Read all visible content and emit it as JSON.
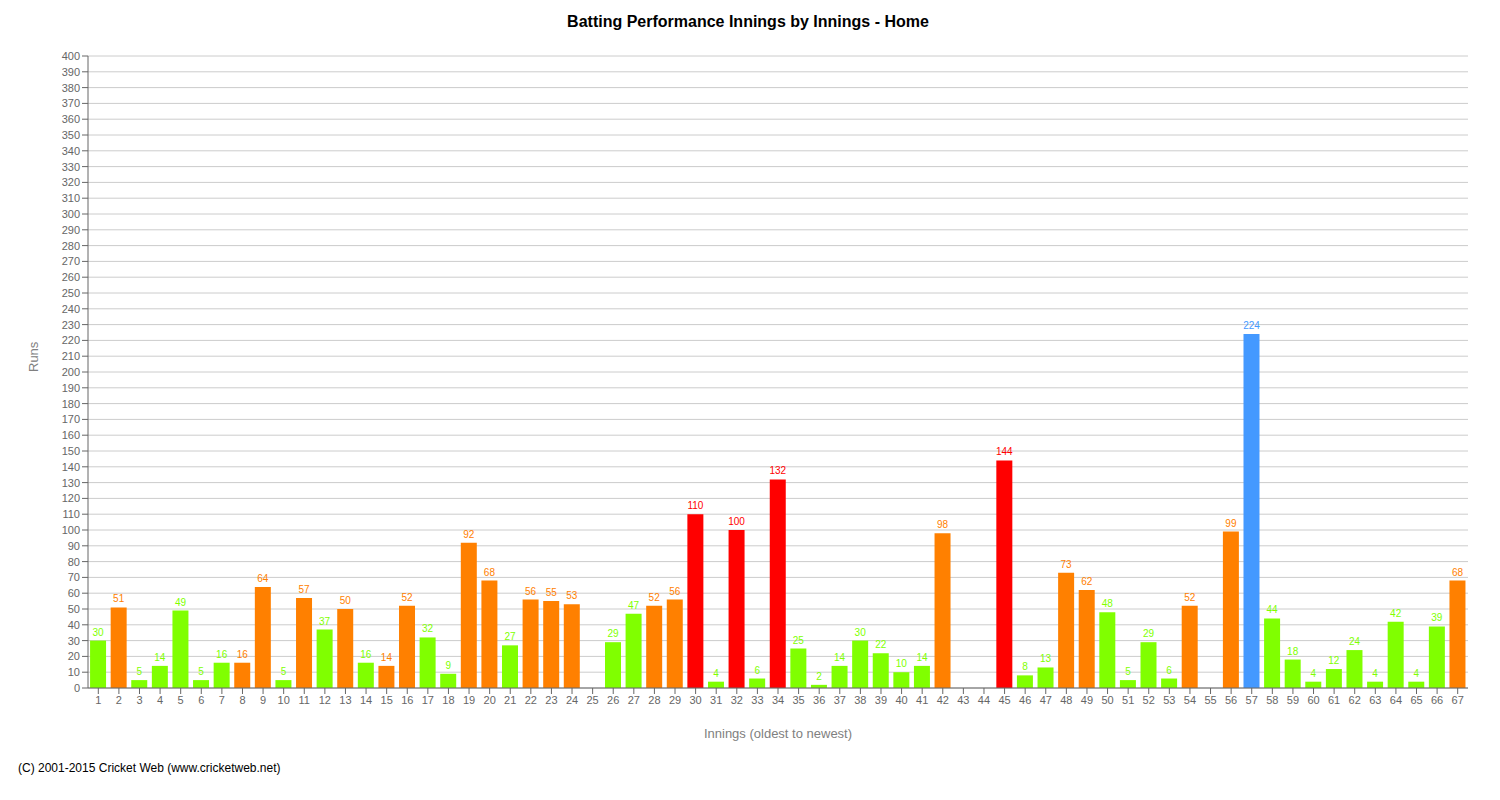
{
  "chart_data": {
    "type": "bar",
    "title": "Batting Performance Innings by Innings - Home",
    "xlabel": "Innings (oldest to newest)",
    "ylabel": "Runs",
    "footer": "(C) 2001-2015 Cricket Web (www.cricketweb.net)",
    "categories": [
      "1",
      "2",
      "3",
      "4",
      "5",
      "6",
      "7",
      "8",
      "9",
      "10",
      "11",
      "12",
      "13",
      "14",
      "15",
      "16",
      "17",
      "18",
      "19",
      "20",
      "21",
      "22",
      "23",
      "24",
      "25",
      "26",
      "27",
      "28",
      "29",
      "30",
      "31",
      "32",
      "33",
      "34",
      "35",
      "36",
      "37",
      "38",
      "39",
      "40",
      "41",
      "42",
      "43",
      "44",
      "45",
      "46",
      "47",
      "48",
      "49",
      "50",
      "51",
      "52",
      "53",
      "54",
      "55",
      "56",
      "57",
      "58",
      "59",
      "60",
      "61",
      "62",
      "63",
      "64",
      "65",
      "66",
      "67"
    ],
    "values": [
      30,
      51,
      5,
      14,
      49,
      5,
      16,
      16,
      64,
      5,
      57,
      37,
      50,
      16,
      14,
      52,
      32,
      9,
      92,
      68,
      27,
      56,
      55,
      53,
      0,
      29,
      47,
      52,
      56,
      110,
      4,
      100,
      6,
      132,
      25,
      2,
      14,
      30,
      22,
      10,
      14,
      98,
      0,
      0,
      144,
      8,
      13,
      73,
      62,
      48,
      5,
      29,
      6,
      52,
      0,
      99,
      224,
      44,
      18,
      4,
      12,
      24,
      4,
      42,
      4,
      39,
      68
    ],
    "colors": [
      "#80ff00",
      "#ff8000",
      "#80ff00",
      "#80ff00",
      "#80ff00",
      "#80ff00",
      "#80ff00",
      "#ff8000",
      "#ff8000",
      "#80ff00",
      "#ff8000",
      "#80ff00",
      "#ff8000",
      "#80ff00",
      "#ff8000",
      "#ff8000",
      "#80ff00",
      "#80ff00",
      "#ff8000",
      "#ff8000",
      "#80ff00",
      "#ff8000",
      "#ff8000",
      "#ff8000",
      "#80ff00",
      "#80ff00",
      "#80ff00",
      "#ff8000",
      "#ff8000",
      "#ff0000",
      "#80ff00",
      "#ff0000",
      "#80ff00",
      "#ff0000",
      "#80ff00",
      "#80ff00",
      "#80ff00",
      "#80ff00",
      "#80ff00",
      "#80ff00",
      "#80ff00",
      "#ff8000",
      "#80ff00",
      "#80ff00",
      "#ff0000",
      "#80ff00",
      "#80ff00",
      "#ff8000",
      "#ff8000",
      "#80ff00",
      "#80ff00",
      "#80ff00",
      "#80ff00",
      "#ff8000",
      "#80ff00",
      "#ff8000",
      "#4499ff",
      "#80ff00",
      "#80ff00",
      "#80ff00",
      "#80ff00",
      "#80ff00",
      "#80ff00",
      "#80ff00",
      "#80ff00",
      "#80ff00",
      "#ff8000"
    ],
    "ylim": [
      0,
      400
    ],
    "yticks": [
      0,
      10,
      20,
      30,
      40,
      50,
      60,
      70,
      80,
      90,
      100,
      110,
      120,
      130,
      140,
      150,
      160,
      170,
      180,
      190,
      200,
      210,
      220,
      230,
      240,
      250,
      260,
      270,
      280,
      290,
      300,
      310,
      320,
      330,
      340,
      350,
      360,
      370,
      380,
      390,
      400
    ],
    "grid": true,
    "data_labels": true
  }
}
